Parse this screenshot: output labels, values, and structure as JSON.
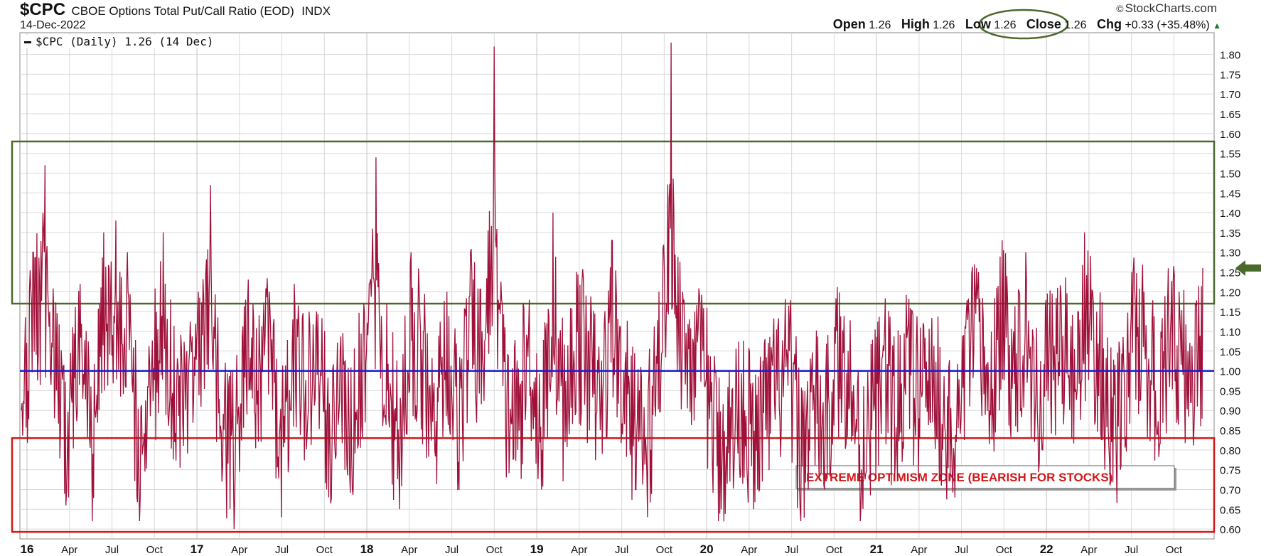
{
  "header": {
    "symbol": "$CPC",
    "name": "CBOE Options Total Put/Call Ratio (EOD)",
    "exchange": "INDX",
    "date": "14-Dec-2022",
    "copyright": "StockCharts.com",
    "open_label": "Open",
    "open": "1.26",
    "high_label": "High",
    "high": "1.26",
    "low_label": "Low",
    "low": "1.26",
    "close_label": "Close",
    "close": "1.26",
    "chg_label": "Chg",
    "chg": "+0.33 (+35.48%)"
  },
  "legend": {
    "text": "$CPC (Daily) 1.26 (14 Dec)"
  },
  "annotation": {
    "text": "EXTREME OPTIMISM ZONE (BEARISH FOR STOCKS)"
  },
  "colors": {
    "series": "#a0113a",
    "baseline": "#1a1ad6",
    "bull_zone": "#4a6a2c",
    "bear_zone": "#d41818",
    "grid": "#d9d9d9",
    "arrow": "#4a6a2c"
  },
  "chart_data": {
    "type": "line",
    "title": "$CPC CBOE Options Total Put/Call Ratio (EOD) INDX",
    "x_ticks": [
      "16",
      "Apr",
      "Jul",
      "Oct",
      "17",
      "Apr",
      "Jul",
      "Oct",
      "18",
      "Apr",
      "Jul",
      "Oct",
      "19",
      "Apr",
      "Jul",
      "Oct",
      "20",
      "Apr",
      "Jul",
      "Oct",
      "21",
      "Apr",
      "Jul",
      "Oct",
      "22",
      "Apr",
      "Jul",
      "Oct"
    ],
    "x_range": [
      "2016-01-04",
      "2022-12-14"
    ],
    "ylim": [
      0.6,
      1.83
    ],
    "y_ticks": [
      "1.80",
      "1.75",
      "1.70",
      "1.65",
      "1.60",
      "1.55",
      "1.50",
      "1.45",
      "1.40",
      "1.35",
      "1.30",
      "1.25",
      "1.20",
      "1.15",
      "1.10",
      "1.05",
      "1.00",
      "0.95",
      "0.90",
      "0.85",
      "0.80",
      "0.75",
      "0.70",
      "0.65",
      "0.60"
    ],
    "reference_line": 1.0,
    "zones": [
      {
        "name": "bullish-extreme",
        "from": 1.17,
        "to": 1.58
      },
      {
        "name": "extreme-optimism",
        "from": 0.6,
        "to": 0.83
      }
    ],
    "series": [
      {
        "values": [
          [
            0.0,
            0.9
          ],
          [
            0.01,
            1.3
          ],
          [
            0.02,
            1.52
          ],
          [
            0.03,
            0.95
          ],
          [
            0.04,
            0.68
          ],
          [
            0.05,
            1.22
          ],
          [
            0.06,
            0.62
          ],
          [
            0.07,
            1.35
          ],
          [
            0.08,
            1.38
          ],
          [
            0.09,
            1.3
          ],
          [
            0.1,
            0.62
          ],
          [
            0.11,
            0.95
          ],
          [
            0.12,
            1.35
          ],
          [
            0.13,
            0.82
          ],
          [
            0.14,
            1.05
          ],
          [
            0.15,
            1.2
          ],
          [
            0.16,
            1.47
          ],
          [
            0.17,
            0.72
          ],
          [
            0.18,
            0.6
          ],
          [
            0.19,
            1.18
          ],
          [
            0.2,
            0.95
          ],
          [
            0.21,
            1.2
          ],
          [
            0.22,
            0.63
          ],
          [
            0.23,
            1.13
          ],
          [
            0.24,
            0.92
          ],
          [
            0.25,
            1.15
          ],
          [
            0.26,
            0.68
          ],
          [
            0.27,
            1.05
          ],
          [
            0.28,
            0.7
          ],
          [
            0.29,
            1.17
          ],
          [
            0.3,
            1.54
          ],
          [
            0.31,
            0.95
          ],
          [
            0.32,
            0.65
          ],
          [
            0.33,
            1.3
          ],
          [
            0.34,
            1.1
          ],
          [
            0.35,
            0.8
          ],
          [
            0.36,
            1.2
          ],
          [
            0.37,
            0.77
          ],
          [
            0.38,
            1.3
          ],
          [
            0.39,
            1.1
          ],
          [
            0.4,
            1.82
          ],
          [
            0.41,
            0.85
          ],
          [
            0.42,
            0.8
          ],
          [
            0.43,
            1.18
          ],
          [
            0.44,
            0.7
          ],
          [
            0.45,
            1.4
          ],
          [
            0.46,
            0.82
          ],
          [
            0.47,
            1.25
          ],
          [
            0.48,
            1.1
          ],
          [
            0.49,
            0.85
          ],
          [
            0.5,
            1.33
          ],
          [
            0.51,
            1.0
          ],
          [
            0.52,
            0.7
          ],
          [
            0.53,
            0.63
          ],
          [
            0.54,
            1.2
          ],
          [
            0.55,
            1.83
          ],
          [
            0.56,
            1.2
          ],
          [
            0.57,
            1.15
          ],
          [
            0.58,
            0.98
          ],
          [
            0.59,
            0.62
          ],
          [
            0.6,
            0.72
          ],
          [
            0.61,
            0.9
          ],
          [
            0.62,
            0.65
          ],
          [
            0.63,
            0.85
          ],
          [
            0.64,
            0.95
          ],
          [
            0.65,
            1.05
          ],
          [
            0.66,
            0.62
          ],
          [
            0.67,
            0.9
          ],
          [
            0.68,
            0.7
          ],
          [
            0.69,
            1.1
          ],
          [
            0.7,
            1.05
          ],
          [
            0.71,
            0.62
          ],
          [
            0.72,
            0.85
          ],
          [
            0.73,
            1.05
          ],
          [
            0.74,
            0.78
          ],
          [
            0.75,
            1.1
          ],
          [
            0.76,
            0.88
          ],
          [
            0.77,
            1.05
          ],
          [
            0.78,
            0.8
          ],
          [
            0.79,
            0.68
          ],
          [
            0.8,
            1.15
          ],
          [
            0.81,
            1.25
          ],
          [
            0.82,
            0.9
          ],
          [
            0.83,
            1.33
          ],
          [
            0.84,
            1.1
          ],
          [
            0.85,
            1.3
          ],
          [
            0.86,
            0.9
          ],
          [
            0.87,
            1.1
          ],
          [
            0.88,
            1.2
          ],
          [
            0.89,
            1.0
          ],
          [
            0.9,
            1.35
          ],
          [
            0.91,
            1.15
          ],
          [
            0.92,
            0.85
          ],
          [
            0.93,
            0.75
          ],
          [
            0.94,
            1.25
          ],
          [
            0.95,
            1.2
          ],
          [
            0.96,
            0.95
          ],
          [
            0.97,
            1.18
          ],
          [
            0.98,
            1.2
          ],
          [
            0.99,
            0.92
          ],
          [
            1.0,
            1.26
          ]
        ]
      }
    ]
  }
}
